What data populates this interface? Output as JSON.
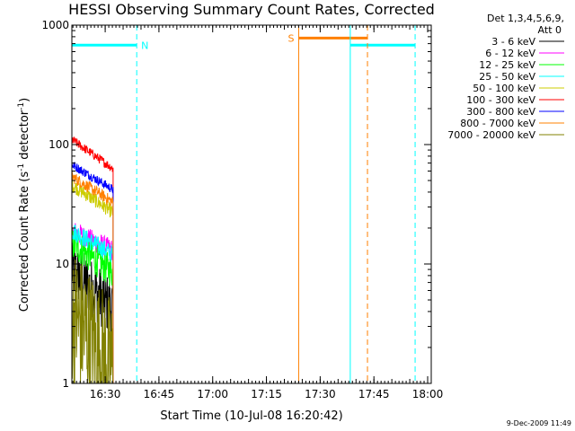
{
  "chart_data": {
    "type": "line",
    "title": "HESSI Observing Summary Count Rates, Corrected",
    "xlabel": "Start Time (10-Jul-08 16:20:42)",
    "ylabel_main": "Corrected Count Rate (s",
    "ylabel_sup1": "-1",
    "ylabel_mid": " detector",
    "ylabel_sup2": "-1",
    "ylabel_end": ")",
    "yscale": "log",
    "ylim": [
      1,
      1000
    ],
    "xlim_minutes": [
      0,
      100.3
    ],
    "x_ticks": [
      {
        "minute": 9.3,
        "label": "16:30"
      },
      {
        "minute": 24.3,
        "label": "16:45"
      },
      {
        "minute": 39.3,
        "label": "17:00"
      },
      {
        "minute": 54.3,
        "label": "17:15"
      },
      {
        "minute": 69.3,
        "label": "17:30"
      },
      {
        "minute": 84.3,
        "label": "17:45"
      },
      {
        "minute": 99.3,
        "label": "18:00"
      }
    ],
    "y_ticks": [
      {
        "value": 1,
        "label": "1"
      },
      {
        "value": 10,
        "label": "10"
      },
      {
        "value": 100,
        "label": "100"
      },
      {
        "value": 1000,
        "label": "1000"
      }
    ],
    "legend_header_1": "Det 1,3,4,5,6,9,",
    "legend_header_2": "Att 0",
    "legend_placement": "right",
    "series": [
      {
        "name": "3 - 6 keV",
        "color": "#000000",
        "x_range": [
          0,
          11.5
        ],
        "start": 9,
        "end": 4.2,
        "noise": 0.25
      },
      {
        "name": "6 - 12 keV",
        "color": "#ff00ff",
        "x_range": [
          0,
          11.5
        ],
        "start": 19,
        "end": 13,
        "noise": 0.09
      },
      {
        "name": "12 - 25 keV",
        "color": "#00ff00",
        "x_range": [
          0,
          11.5
        ],
        "start": 15,
        "end": 8.5,
        "noise": 0.14
      },
      {
        "name": "25 - 50 keV",
        "color": "#00ffff",
        "x_range": [
          0,
          11.5
        ],
        "start": 19,
        "end": 12,
        "noise": 0.08
      },
      {
        "name": "50 - 100 keV",
        "color": "#cccc00",
        "x_range": [
          0,
          11.5
        ],
        "start": 46,
        "end": 27,
        "noise": 0.06
      },
      {
        "name": "100 - 300 keV",
        "color": "#ff0000",
        "x_range": [
          0,
          11.5
        ],
        "start": 110,
        "end": 63,
        "noise": 0.04
      },
      {
        "name": "300 - 800 keV",
        "color": "#0000ff",
        "x_range": [
          0,
          11.5
        ],
        "start": 68,
        "end": 42,
        "noise": 0.04
      },
      {
        "name": "800 - 7000 keV",
        "color": "#ff8000",
        "x_range": [
          0,
          11.5
        ],
        "start": 54,
        "end": 33,
        "noise": 0.05
      },
      {
        "name": "7000 - 20000 keV",
        "color": "#808000",
        "x_range": [
          0,
          11.5
        ],
        "start": 3.8,
        "end": 1.3,
        "noise": 0.6
      }
    ],
    "flags": [
      {
        "label": "N",
        "color": "#00ffff",
        "start": 0,
        "end": 18.1,
        "level": 680
      },
      {
        "label": "",
        "color": "#00ffff",
        "start": 77.7,
        "end": 95.8,
        "level": 680
      },
      {
        "label": "S",
        "color": "#ff8000",
        "start": 63.3,
        "end": 82.5,
        "level": 780
      }
    ],
    "vertical_lines": [
      {
        "minute": 18.1,
        "color": "#00ffff",
        "style": "dashed"
      },
      {
        "minute": 63.3,
        "color": "#ff8000",
        "style": "solid"
      },
      {
        "minute": 77.7,
        "color": "#00ffff",
        "style": "solid"
      },
      {
        "minute": 82.5,
        "color": "#ff8000",
        "style": "dashed"
      },
      {
        "minute": 95.8,
        "color": "#00ffff",
        "style": "dashed"
      }
    ]
  },
  "timestamp": "9-Dec-2009 11:49"
}
